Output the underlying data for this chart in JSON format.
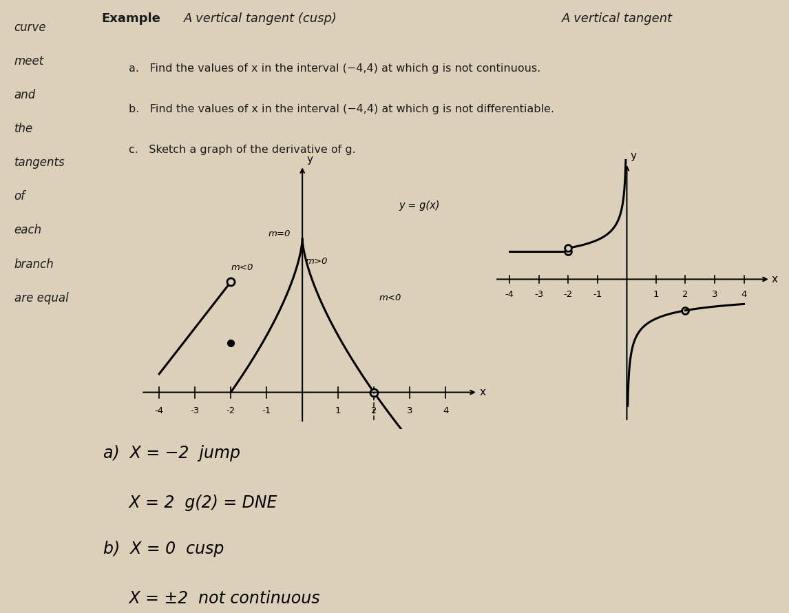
{
  "bg_color": "#ddd0bb",
  "text_color": "#1a1a1a",
  "left_text": [
    "curve",
    "meet",
    "and",
    "the",
    "tangents",
    "of",
    "each",
    "branch",
    "are equal"
  ],
  "example_label": "Example",
  "handwritten_title": "A vertical tangent (cusp)",
  "handwritten_title2": "A vertical tangent",
  "problem_a": "a.   Find the values of x in the interval (−4,4) at which g is not continuous.",
  "problem_b": "b.   Find the values of x in the interval (−4,4) at which g is not differentiable.",
  "problem_c": "c.   Sketch a graph of the derivative of g.",
  "ylabel_left": "y",
  "xlabel_left": "x",
  "ylabel_right": "y",
  "xlabel_right": "x",
  "annot_m0": "m=0",
  "annot_mlt0_left": "m<0",
  "annot_mgt0": "m>0",
  "annot_mlt0_right": "m<0",
  "annot_gx": "y = g(x)",
  "answer_a1": "a)  X = −2  jump",
  "answer_a2": "     X = 2  g(2) = DNE",
  "answer_b1": "b)  X = 0  cusp",
  "answer_b2": "     X = ±2  not continuous"
}
